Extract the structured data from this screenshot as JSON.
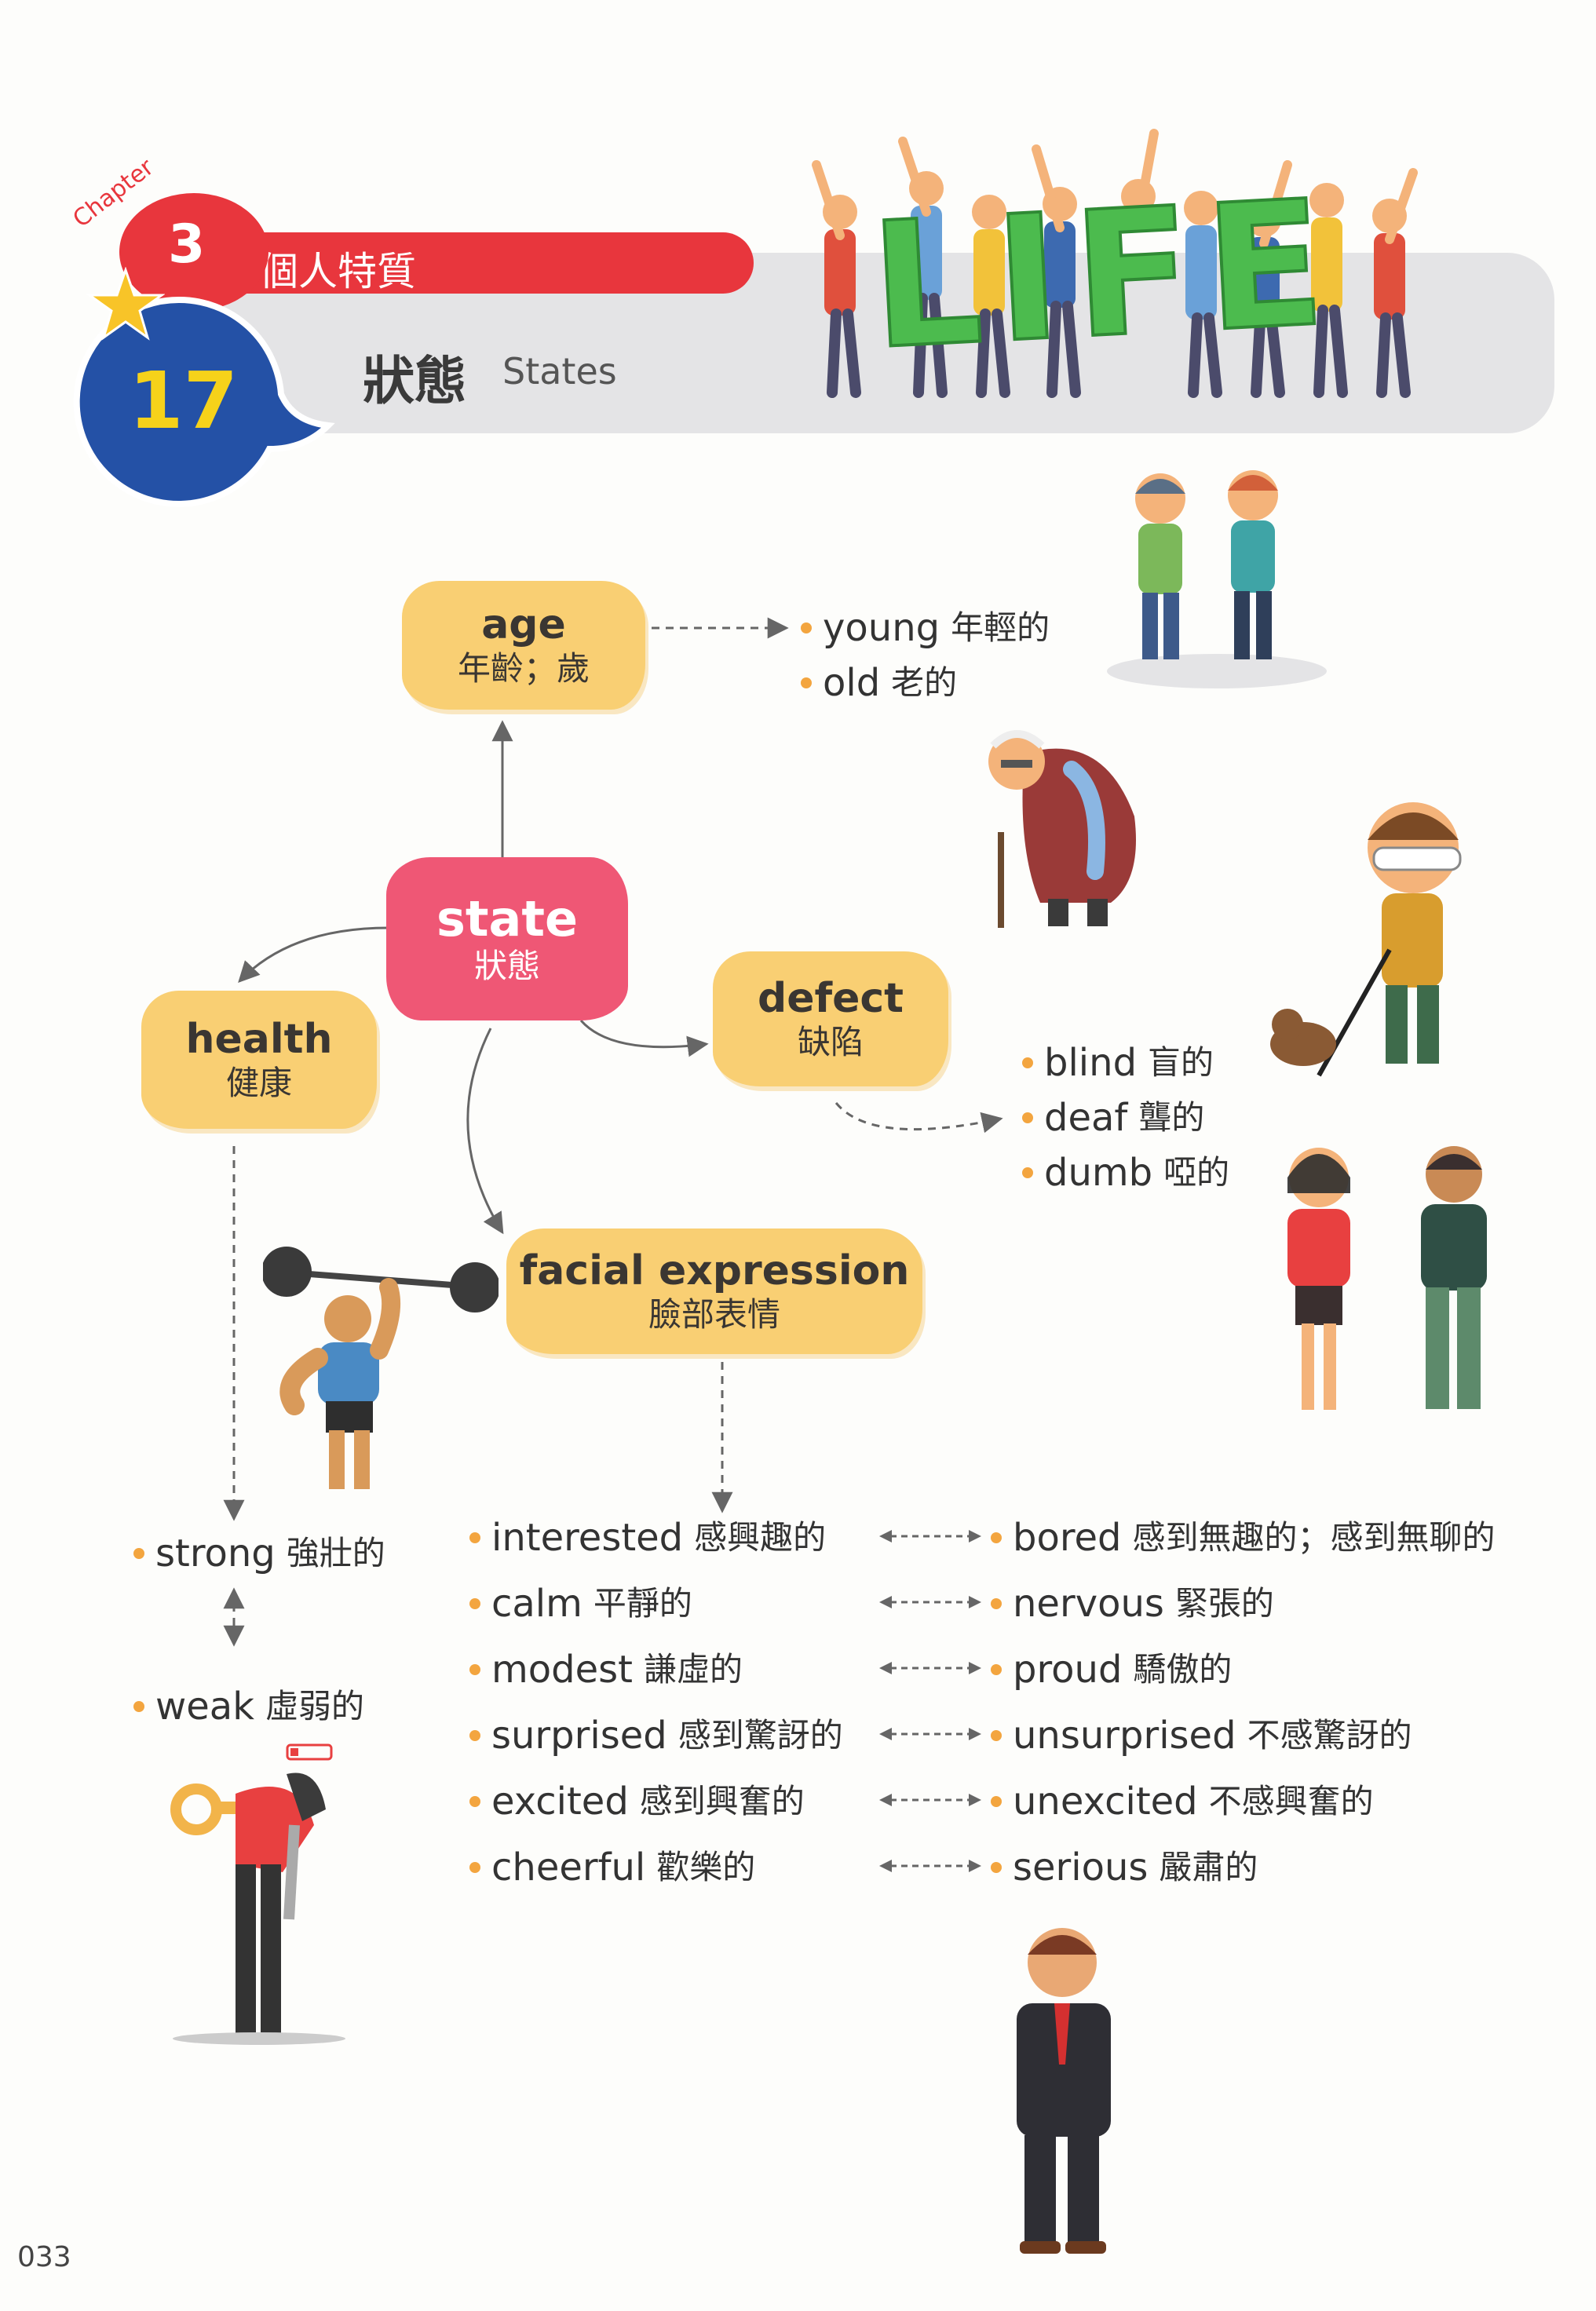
{
  "header": {
    "chapter_label": "Chapter",
    "chapter_number": "3",
    "chapter_title": "個人特質",
    "unit_number": "17",
    "unit_title_zh": "狀態",
    "unit_title_en": "States",
    "banner_word": "LIFE"
  },
  "nodes": {
    "state": {
      "en": "state",
      "zh": "狀態"
    },
    "age": {
      "en": "age",
      "zh": "年齡；歲"
    },
    "health": {
      "en": "health",
      "zh": "健康"
    },
    "defect": {
      "en": "defect",
      "zh": "缺陷"
    },
    "facial": {
      "en": "facial expression",
      "zh": "臉部表情"
    }
  },
  "age_words": [
    {
      "en": "young",
      "zh": "年輕的"
    },
    {
      "en": "old",
      "zh": "老的"
    }
  ],
  "defect_words": [
    {
      "en": "blind",
      "zh": "盲的"
    },
    {
      "en": "deaf",
      "zh": "聾的"
    },
    {
      "en": "dumb",
      "zh": "啞的"
    }
  ],
  "health_words": [
    {
      "en": "strong",
      "zh": "強壯的"
    },
    {
      "en": "weak",
      "zh": "虛弱的"
    }
  ],
  "expression_pairs": [
    {
      "left_en": "interested",
      "left_zh": "感興趣的",
      "right_en": "bored",
      "right_zh": "感到無趣的；感到無聊的"
    },
    {
      "left_en": "calm",
      "left_zh": "平靜的",
      "right_en": "nervous",
      "right_zh": "緊張的"
    },
    {
      "left_en": "modest",
      "left_zh": "謙虛的",
      "right_en": "proud",
      "right_zh": "驕傲的"
    },
    {
      "left_en": "surprised",
      "left_zh": "感到驚訝的",
      "right_en": "unsurprised",
      "right_zh": "不感驚訝的"
    },
    {
      "left_en": "excited",
      "left_zh": "感到興奮的",
      "right_en": "unexcited",
      "right_zh": "不感興奮的"
    },
    {
      "left_en": "cheerful",
      "left_zh": "歡樂的",
      "right_en": "serious",
      "right_zh": "嚴肅的"
    }
  ],
  "page_number": "033",
  "colors": {
    "chapter_red": "#e8363d",
    "unit_blue": "#2451a6",
    "unit_yellow": "#f6d21a",
    "node_yellow": "#f9cf73",
    "state_pink": "#ef5775",
    "bullet_orange": "#f3a53f",
    "banner_gray": "#e4e4e6"
  }
}
